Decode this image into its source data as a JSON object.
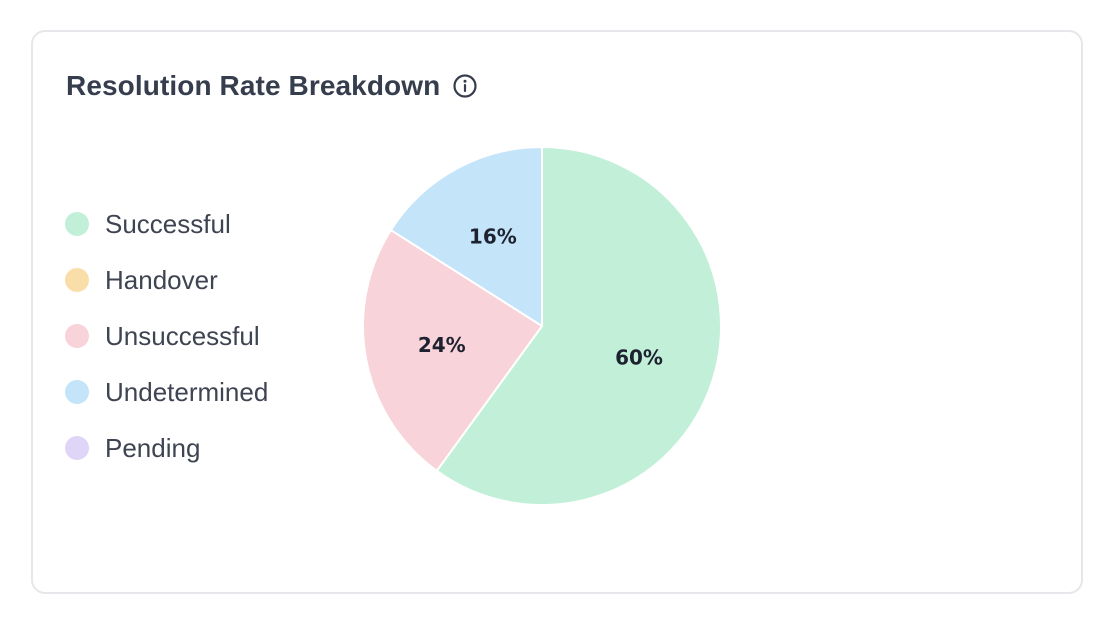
{
  "card": {
    "title": "Resolution Rate Breakdown",
    "info_icon": "info-circle-icon"
  },
  "chart_data": {
    "type": "pie",
    "title": "Resolution Rate Breakdown",
    "legend_position": "left",
    "start_angle_deg": 0,
    "direction": "clockwise",
    "legend": [
      {
        "name": "Successful",
        "color": "#c2efd8"
      },
      {
        "name": "Handover",
        "color": "#f9deaa"
      },
      {
        "name": "Unsuccessful",
        "color": "#f8d3d9"
      },
      {
        "name": "Undetermined",
        "color": "#c4e4f9"
      },
      {
        "name": "Pending",
        "color": "#ded5f7"
      }
    ],
    "slices": [
      {
        "name": "Successful",
        "value": 60,
        "label": "60%",
        "color": "#c2efd8"
      },
      {
        "name": "Unsuccessful",
        "value": 24,
        "label": "24%",
        "color": "#f8d3d9"
      },
      {
        "name": "Undetermined",
        "value": 16,
        "label": "16%",
        "color": "#c4e4f9"
      }
    ]
  }
}
